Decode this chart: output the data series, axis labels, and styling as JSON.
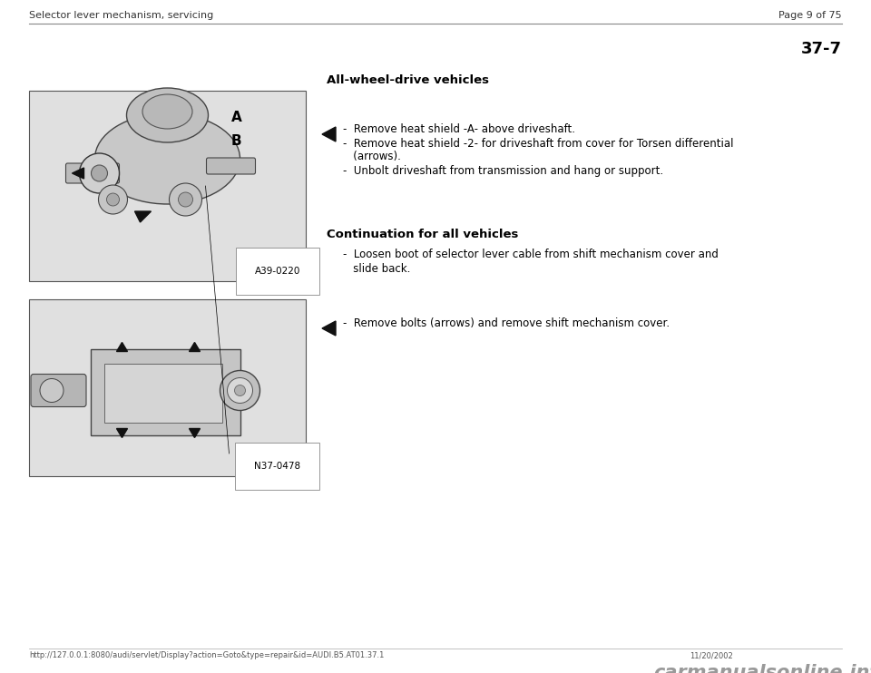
{
  "bg_color": "#ffffff",
  "header_left": "Selector lever mechanism, servicing",
  "header_right": "Page 9 of 75",
  "page_number": "37-7",
  "section1_heading": "All-wheel-drive vehicles",
  "bullet1_line1": "-  Remove heat shield -A- above driveshaft.",
  "bullet1_line2": "-  Remove heat shield -2- for driveshaft from cover for Torsen differential",
  "bullet1_line2b": "   (arrows).",
  "bullet1_line3": "-  Unbolt driveshaft from transmission and hang or support.",
  "section2_heading": "Continuation for all vehicles",
  "bullet2_line1": "-  Loosen boot of selector lever cable from shift mechanism cover and",
  "bullet2_line1b": "   slide back.",
  "bullet3_line1": "-  Remove bolts (arrows) and remove shift mechanism cover.",
  "img1_label": "A39-0220",
  "img2_label": "N37-0478",
  "footer_left": "http://127.0.0.1:8080/audi/servlet/Display?action=Goto&type=repair&id=AUDI.B5.AT01.37.1",
  "footer_right": "11/20/2002",
  "footer_logo": "carmanualsonline.info",
  "font_color": "#000000",
  "gray_light": "#e0e0e0",
  "gray_mid": "#b0b0b0",
  "gray_dark": "#707070"
}
